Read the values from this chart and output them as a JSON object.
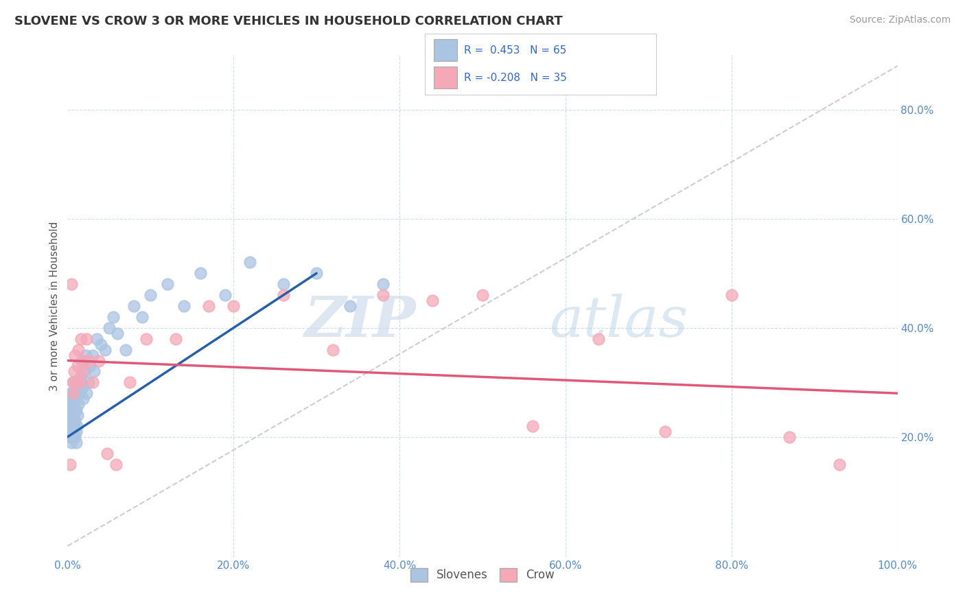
{
  "title": "SLOVENE VS CROW 3 OR MORE VEHICLES IN HOUSEHOLD CORRELATION CHART",
  "source": "Source: ZipAtlas.com",
  "ylabel": "3 or more Vehicles in Household",
  "xlim": [
    0.0,
    1.0
  ],
  "ylim": [
    -0.02,
    0.9
  ],
  "slovene_color": "#aac4e2",
  "crow_color": "#f4a8b8",
  "slovene_line_color": "#2860a8",
  "crow_line_color": "#e05878",
  "ref_line_color": "#c8c8c8",
  "background_color": "#ffffff",
  "grid_color": "#ccddee",
  "slovene_x": [
    0.001,
    0.002,
    0.002,
    0.003,
    0.003,
    0.003,
    0.004,
    0.004,
    0.004,
    0.004,
    0.005,
    0.005,
    0.005,
    0.005,
    0.006,
    0.006,
    0.006,
    0.007,
    0.007,
    0.007,
    0.008,
    0.008,
    0.009,
    0.009,
    0.009,
    0.01,
    0.01,
    0.01,
    0.011,
    0.011,
    0.012,
    0.012,
    0.013,
    0.014,
    0.015,
    0.016,
    0.017,
    0.018,
    0.019,
    0.02,
    0.022,
    0.023,
    0.025,
    0.027,
    0.03,
    0.032,
    0.035,
    0.04,
    0.045,
    0.05,
    0.055,
    0.06,
    0.07,
    0.08,
    0.09,
    0.1,
    0.12,
    0.14,
    0.16,
    0.19,
    0.22,
    0.26,
    0.3,
    0.34,
    0.38
  ],
  "slovene_y": [
    0.24,
    0.26,
    0.22,
    0.25,
    0.27,
    0.23,
    0.2,
    0.22,
    0.24,
    0.28,
    0.19,
    0.21,
    0.23,
    0.26,
    0.2,
    0.22,
    0.28,
    0.21,
    0.24,
    0.3,
    0.22,
    0.25,
    0.2,
    0.23,
    0.27,
    0.19,
    0.21,
    0.25,
    0.22,
    0.28,
    0.24,
    0.3,
    0.26,
    0.28,
    0.31,
    0.3,
    0.34,
    0.29,
    0.27,
    0.32,
    0.35,
    0.28,
    0.3,
    0.33,
    0.35,
    0.32,
    0.38,
    0.37,
    0.36,
    0.4,
    0.42,
    0.39,
    0.36,
    0.44,
    0.42,
    0.46,
    0.48,
    0.44,
    0.5,
    0.46,
    0.52,
    0.48,
    0.5,
    0.44,
    0.48
  ],
  "crow_x": [
    0.003,
    0.005,
    0.006,
    0.007,
    0.008,
    0.009,
    0.01,
    0.012,
    0.013,
    0.015,
    0.016,
    0.018,
    0.02,
    0.023,
    0.026,
    0.03,
    0.038,
    0.048,
    0.058,
    0.075,
    0.095,
    0.13,
    0.17,
    0.2,
    0.26,
    0.32,
    0.38,
    0.44,
    0.5,
    0.56,
    0.64,
    0.72,
    0.8,
    0.87,
    0.93
  ],
  "crow_y": [
    0.15,
    0.48,
    0.3,
    0.28,
    0.32,
    0.35,
    0.3,
    0.33,
    0.36,
    0.3,
    0.38,
    0.32,
    0.34,
    0.38,
    0.34,
    0.3,
    0.34,
    0.17,
    0.15,
    0.3,
    0.38,
    0.38,
    0.44,
    0.44,
    0.46,
    0.36,
    0.46,
    0.45,
    0.46,
    0.22,
    0.38,
    0.21,
    0.46,
    0.2,
    0.15
  ],
  "slovene_trend_x": [
    0.0,
    0.3
  ],
  "slovene_trend_y": [
    0.2,
    0.5
  ],
  "crow_trend_x": [
    0.0,
    1.0
  ],
  "crow_trend_y": [
    0.34,
    0.28
  ],
  "ref_line_x": [
    0.0,
    1.0
  ],
  "ref_line_y": [
    0.0,
    0.88
  ],
  "legend_slovene_r": "R =  0.453",
  "legend_slovene_n": "N = 65",
  "legend_crow_r": "R = -0.208",
  "legend_crow_n": "N = 35"
}
